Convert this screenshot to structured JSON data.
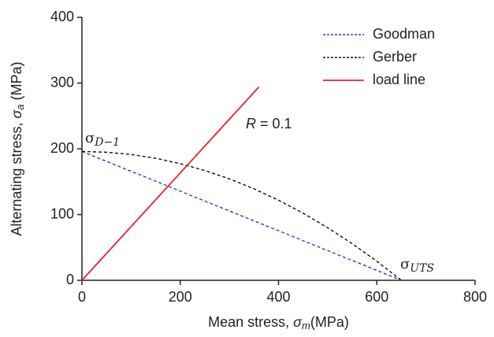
{
  "chart_data": {
    "type": "line",
    "xlabel": [
      "Mean stress, ",
      "σ",
      "m",
      "(MPa)"
    ],
    "ylabel": [
      "Alternating stress, ",
      "σ",
      "a",
      " (MPa)"
    ],
    "xlim": [
      0,
      800
    ],
    "xticks": [
      0,
      200,
      400,
      600,
      800
    ],
    "ylim": [
      0,
      400
    ],
    "yticks": [
      0,
      100,
      200,
      300,
      400
    ],
    "grid": false,
    "legend": "upper right",
    "series": [
      {
        "name": "Goodman",
        "color": "#2b3fd6",
        "dash": "dashed",
        "x": [
          0,
          650
        ],
        "values": [
          196,
          0
        ]
      },
      {
        "name": "Gerber",
        "color": "#111111",
        "dash": "dashed",
        "x": [
          0,
          50,
          100,
          150,
          200,
          250,
          300,
          350,
          400,
          450,
          500,
          550,
          600,
          650
        ],
        "values": [
          196,
          194.8,
          191.4,
          185.6,
          177.4,
          167.0,
          154.3,
          139.2,
          121.8,
          102.1,
          80.0,
          55.7,
          29.0,
          0
        ]
      },
      {
        "name": "load line",
        "color": "#e8262b",
        "dash": "solid",
        "x": [
          0,
          360
        ],
        "values": [
          0,
          294
        ]
      }
    ],
    "annotations": [
      {
        "text": "σ",
        "sub": "D−1"
      },
      {
        "text": "σ",
        "sub": "UTS"
      },
      {
        "italic": "R",
        "text": " = 0.1"
      }
    ]
  }
}
